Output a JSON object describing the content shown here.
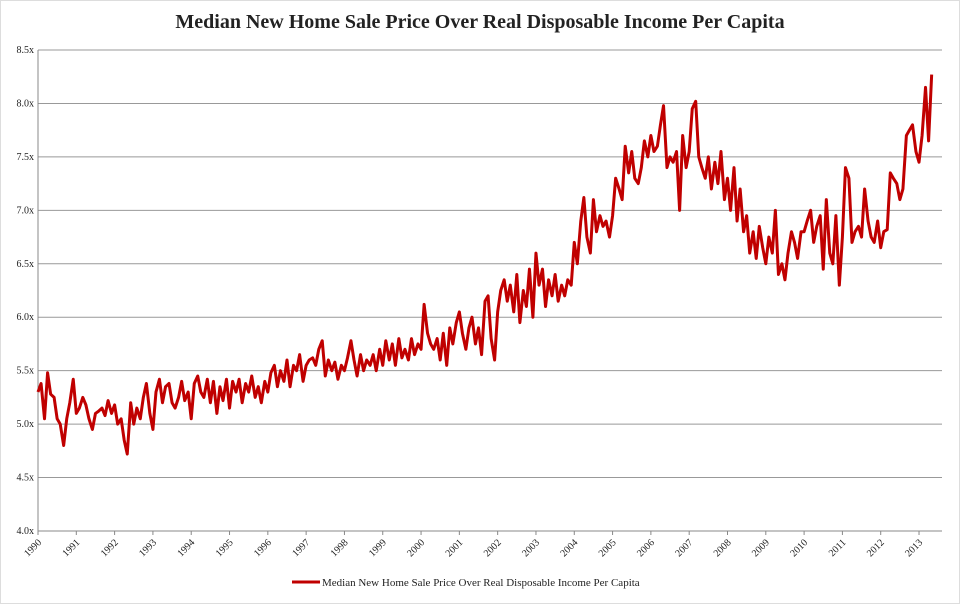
{
  "chart_data": {
    "type": "line",
    "title": "Median New Home Sale Price Over Real Disposable Income Per Capita",
    "xlim": [
      1990,
      2013.6
    ],
    "xticks": [
      1990,
      1991,
      1992,
      1993,
      1994,
      1995,
      1996,
      1997,
      1998,
      1999,
      2000,
      2001,
      2002,
      2003,
      2004,
      2005,
      2006,
      2007,
      2008,
      2009,
      2010,
      2011,
      2012,
      2013
    ],
    "ylim": [
      4.0,
      8.5
    ],
    "yticks": [
      {
        "value": 4.0,
        "label": "4.0x"
      },
      {
        "value": 4.5,
        "label": "4.5x"
      },
      {
        "value": 5.0,
        "label": "5.0x"
      },
      {
        "value": 5.5,
        "label": "5.5x"
      },
      {
        "value": 6.0,
        "label": "6.0x"
      },
      {
        "value": 6.5,
        "label": "6.5x"
      },
      {
        "value": 7.0,
        "label": "7.0x"
      },
      {
        "value": 7.5,
        "label": "7.5x"
      },
      {
        "value": 8.0,
        "label": "8.0x"
      },
      {
        "value": 8.5,
        "label": "8.5x"
      }
    ],
    "grid": true,
    "legend": "bottom",
    "x": [
      1990.0,
      1990.08,
      1990.17,
      1990.25,
      1990.33,
      1990.42,
      1990.5,
      1990.58,
      1990.67,
      1990.75,
      1990.83,
      1990.92,
      1991.0,
      1991.08,
      1991.17,
      1991.25,
      1991.33,
      1991.42,
      1991.5,
      1991.58,
      1991.67,
      1991.75,
      1991.83,
      1991.92,
      1992.0,
      1992.08,
      1992.17,
      1992.25,
      1992.33,
      1992.42,
      1992.5,
      1992.58,
      1992.67,
      1992.75,
      1992.83,
      1992.92,
      1993.0,
      1993.08,
      1993.17,
      1993.25,
      1993.33,
      1993.42,
      1993.5,
      1993.58,
      1993.67,
      1993.75,
      1993.83,
      1993.92,
      1994.0,
      1994.08,
      1994.17,
      1994.25,
      1994.33,
      1994.42,
      1994.5,
      1994.58,
      1994.67,
      1994.75,
      1994.83,
      1994.92,
      1995.0,
      1995.08,
      1995.17,
      1995.25,
      1995.33,
      1995.42,
      1995.5,
      1995.58,
      1995.67,
      1995.75,
      1995.83,
      1995.92,
      1996.0,
      1996.08,
      1996.17,
      1996.25,
      1996.33,
      1996.42,
      1996.5,
      1996.58,
      1996.67,
      1996.75,
      1996.83,
      1996.92,
      1997.0,
      1997.08,
      1997.17,
      1997.25,
      1997.33,
      1997.42,
      1997.5,
      1997.58,
      1997.67,
      1997.75,
      1997.83,
      1997.92,
      1998.0,
      1998.08,
      1998.17,
      1998.25,
      1998.33,
      1998.42,
      1998.5,
      1998.58,
      1998.67,
      1998.75,
      1998.83,
      1998.92,
      1999.0,
      1999.08,
      1999.17,
      1999.25,
      1999.33,
      1999.42,
      1999.5,
      1999.58,
      1999.67,
      1999.75,
      1999.83,
      1999.92,
      2000.0,
      2000.08,
      2000.17,
      2000.25,
      2000.33,
      2000.42,
      2000.5,
      2000.58,
      2000.67,
      2000.75,
      2000.83,
      2000.92,
      2001.0,
      2001.08,
      2001.17,
      2001.25,
      2001.33,
      2001.42,
      2001.5,
      2001.58,
      2001.67,
      2001.75,
      2001.83,
      2001.92,
      2002.0,
      2002.08,
      2002.17,
      2002.25,
      2002.33,
      2002.42,
      2002.5,
      2002.58,
      2002.67,
      2002.75,
      2002.83,
      2002.92,
      2003.0,
      2003.08,
      2003.17,
      2003.25,
      2003.33,
      2003.42,
      2003.5,
      2003.58,
      2003.67,
      2003.75,
      2003.83,
      2003.92,
      2004.0,
      2004.08,
      2004.17,
      2004.25,
      2004.33,
      2004.42,
      2004.5,
      2004.58,
      2004.67,
      2004.75,
      2004.83,
      2004.92,
      2005.0,
      2005.08,
      2005.17,
      2005.25,
      2005.33,
      2005.42,
      2005.5,
      2005.58,
      2005.67,
      2005.75,
      2005.83,
      2005.92,
      2006.0,
      2006.08,
      2006.17,
      2006.25,
      2006.33,
      2006.42,
      2006.5,
      2006.58,
      2006.67,
      2006.75,
      2006.83,
      2006.92,
      2007.0,
      2007.08,
      2007.17,
      2007.25,
      2007.33,
      2007.42,
      2007.5,
      2007.58,
      2007.67,
      2007.75,
      2007.83,
      2007.92,
      2008.0,
      2008.08,
      2008.17,
      2008.25,
      2008.33,
      2008.42,
      2008.5,
      2008.58,
      2008.67,
      2008.75,
      2008.83,
      2008.92,
      2009.0,
      2009.08,
      2009.17,
      2009.25,
      2009.33,
      2009.42,
      2009.5,
      2009.58,
      2009.67,
      2009.75,
      2009.83,
      2009.92,
      2010.0,
      2010.08,
      2010.17,
      2010.25,
      2010.33,
      2010.42,
      2010.5,
      2010.58,
      2010.67,
      2010.75,
      2010.83,
      2010.92,
      2011.0,
      2011.08,
      2011.17,
      2011.25,
      2011.33,
      2011.42,
      2011.5,
      2011.58,
      2011.67,
      2011.75,
      2011.83,
      2011.92,
      2012.0,
      2012.08,
      2012.17,
      2012.25,
      2012.33,
      2012.42,
      2012.5,
      2012.58,
      2012.67,
      2012.75,
      2012.83,
      2012.92,
      2013.0,
      2013.08,
      2013.17,
      2013.25,
      2013.33
    ],
    "series": [
      {
        "name": "Median New Home Sale Price Over Real Disposable Income Per Capita",
        "color": "#c00000",
        "values": [
          5.3,
          5.38,
          5.05,
          5.48,
          5.28,
          5.25,
          5.05,
          5.0,
          4.8,
          5.05,
          5.2,
          5.42,
          5.1,
          5.15,
          5.25,
          5.18,
          5.05,
          4.95,
          5.1,
          5.12,
          5.15,
          5.08,
          5.22,
          5.1,
          5.18,
          5.0,
          5.05,
          4.85,
          4.72,
          5.2,
          5.0,
          5.15,
          5.05,
          5.25,
          5.38,
          5.1,
          4.95,
          5.3,
          5.42,
          5.2,
          5.35,
          5.38,
          5.2,
          5.15,
          5.25,
          5.4,
          5.22,
          5.3,
          5.05,
          5.38,
          5.45,
          5.3,
          5.25,
          5.42,
          5.2,
          5.4,
          5.1,
          5.35,
          5.22,
          5.42,
          5.15,
          5.4,
          5.3,
          5.42,
          5.2,
          5.38,
          5.3,
          5.45,
          5.25,
          5.35,
          5.2,
          5.4,
          5.3,
          5.48,
          5.55,
          5.35,
          5.5,
          5.4,
          5.6,
          5.35,
          5.55,
          5.5,
          5.65,
          5.4,
          5.55,
          5.6,
          5.62,
          5.55,
          5.7,
          5.78,
          5.45,
          5.6,
          5.5,
          5.58,
          5.42,
          5.55,
          5.5,
          5.62,
          5.78,
          5.6,
          5.45,
          5.65,
          5.5,
          5.6,
          5.55,
          5.65,
          5.5,
          5.7,
          5.55,
          5.78,
          5.6,
          5.75,
          5.55,
          5.8,
          5.62,
          5.7,
          5.6,
          5.8,
          5.65,
          5.75,
          5.7,
          6.12,
          5.85,
          5.75,
          5.7,
          5.8,
          5.6,
          5.85,
          5.55,
          5.9,
          5.75,
          5.95,
          6.05,
          5.85,
          5.7,
          5.9,
          6.0,
          5.75,
          5.9,
          5.65,
          6.15,
          6.2,
          5.8,
          5.6,
          6.05,
          6.25,
          6.35,
          6.15,
          6.3,
          6.05,
          6.4,
          5.95,
          6.25,
          6.1,
          6.45,
          6.0,
          6.6,
          6.3,
          6.45,
          6.1,
          6.35,
          6.2,
          6.4,
          6.15,
          6.3,
          6.2,
          6.35,
          6.3,
          6.7,
          6.5,
          6.9,
          7.12,
          6.75,
          6.6,
          7.1,
          6.8,
          6.95,
          6.85,
          6.9,
          6.75,
          6.95,
          7.3,
          7.2,
          7.1,
          7.6,
          7.35,
          7.55,
          7.3,
          7.25,
          7.4,
          7.65,
          7.5,
          7.7,
          7.55,
          7.6,
          7.8,
          7.98,
          7.4,
          7.5,
          7.45,
          7.55,
          7.0,
          7.7,
          7.4,
          7.55,
          7.95,
          8.02,
          7.5,
          7.4,
          7.3,
          7.5,
          7.2,
          7.45,
          7.25,
          7.55,
          7.1,
          7.3,
          7.0,
          7.4,
          6.9,
          7.2,
          6.8,
          6.95,
          6.6,
          6.8,
          6.55,
          6.85,
          6.65,
          6.5,
          6.75,
          6.6,
          7.0,
          6.4,
          6.5,
          6.35,
          6.6,
          6.8,
          6.7,
          6.55,
          6.8,
          6.8,
          6.9,
          7.0,
          6.7,
          6.85,
          6.95,
          6.45,
          7.1,
          6.6,
          6.5,
          6.95,
          6.3,
          6.75,
          7.4,
          7.3,
          6.7,
          6.8,
          6.85,
          6.75,
          7.2,
          6.9,
          6.75,
          6.7,
          6.9,
          6.65,
          6.8,
          6.82,
          7.35,
          7.3,
          7.25,
          7.1,
          7.2,
          7.7,
          7.75,
          7.8,
          7.55,
          7.45,
          7.7,
          8.15,
          7.65,
          8.27
        ]
      }
    ]
  }
}
